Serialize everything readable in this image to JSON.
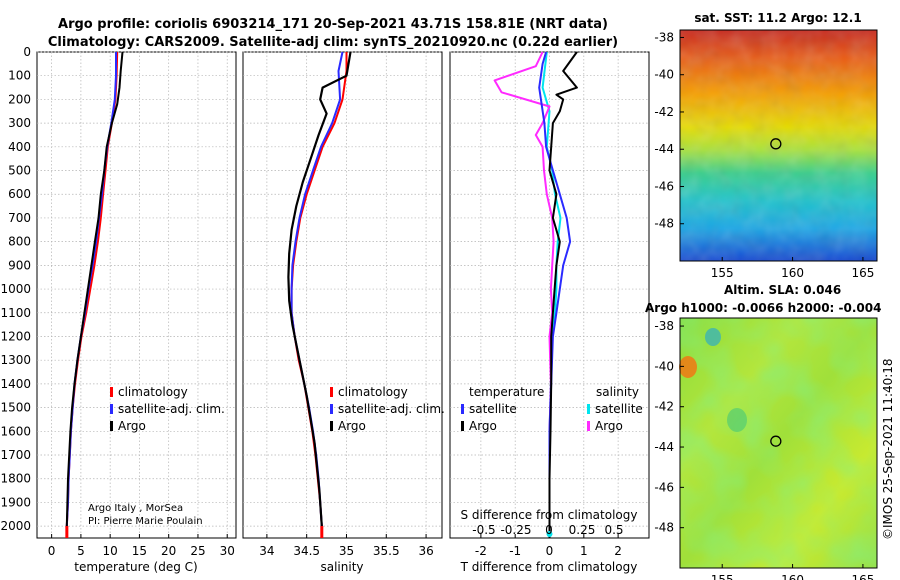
{
  "header": {
    "title_line1": "Argo profile: coriolis 6903214_171 20-Sep-2021 43.71S 158.81E (NRT data)",
    "title_line2": "Climatology: CARS2009. Satellite-adj clim: synTS_20210920.nc (0.22d earlier)"
  },
  "depth_axis": {
    "ticks": [
      0,
      100,
      200,
      300,
      400,
      500,
      600,
      700,
      800,
      900,
      1000,
      1100,
      1200,
      1300,
      1400,
      1500,
      1600,
      1700,
      1800,
      1900,
      2000
    ],
    "range": [
      0,
      2050
    ]
  },
  "panels": {
    "temperature": {
      "xlabel": "temperature (deg C)",
      "ticks": [
        0,
        5,
        10,
        15,
        20,
        25,
        30
      ],
      "tick_labels": [
        "0",
        "5",
        "10",
        "15",
        "20",
        "25",
        "30"
      ],
      "xlim": [
        -2.5,
        31.5
      ],
      "legend": [
        "climatology",
        "satellite-adj. clim.",
        "Argo"
      ],
      "credit_line1": "Argo Italy , MorSea",
      "credit_line2": "PI: Pierre Marie Poulain"
    },
    "salinity": {
      "xlabel": "salinity",
      "ticks": [
        34,
        34.5,
        35,
        35.5,
        36
      ],
      "tick_labels": [
        "34",
        "34.5",
        "35",
        "35.5",
        "36"
      ],
      "xlim": [
        33.7,
        36.2
      ],
      "legend": [
        "climatology",
        "satellite-adj. clim.",
        "Argo"
      ]
    },
    "difference": {
      "xlabel": "T difference from climatology",
      "ticks": [
        -2,
        -1,
        0,
        1,
        2
      ],
      "tick_labels": [
        "-2",
        "-1",
        "0",
        "1",
        "2"
      ],
      "xlim": [
        -2.9,
        2.9
      ],
      "s_label": "S difference from climatology",
      "s_tick_labels": [
        "-0.5",
        "-0.25",
        "0",
        "0.25",
        "0.5"
      ],
      "legend_temp_title": "temperature",
      "legend_sal_title": "salinity",
      "legend_temp": [
        "satellite",
        "Argo"
      ],
      "legend_sal": [
        "satellite",
        "Argo"
      ]
    }
  },
  "chart_data": {
    "type": "line",
    "y_axis": "depth (m)",
    "temperature": {
      "climatology": [
        [
          11.2,
          0
        ],
        [
          11.1,
          100
        ],
        [
          10.9,
          200
        ],
        [
          10.3,
          300
        ],
        [
          9.6,
          400
        ],
        [
          9.2,
          500
        ],
        [
          8.8,
          600
        ],
        [
          8.4,
          700
        ],
        [
          7.9,
          800
        ],
        [
          7.3,
          900
        ],
        [
          6.6,
          1000
        ],
        [
          5.9,
          1100
        ],
        [
          5.1,
          1200
        ],
        [
          4.5,
          1300
        ],
        [
          4.0,
          1400
        ],
        [
          3.6,
          1500
        ],
        [
          3.3,
          1600
        ],
        [
          3.1,
          1700
        ],
        [
          2.9,
          1800
        ],
        [
          2.8,
          1900
        ],
        [
          2.6,
          2000
        ],
        [
          2.6,
          2050
        ]
      ],
      "satellite_adj": [
        [
          11.0,
          0
        ],
        [
          11.0,
          100
        ],
        [
          10.8,
          200
        ],
        [
          10.2,
          300
        ],
        [
          9.5,
          400
        ],
        [
          9.0,
          500
        ],
        [
          8.6,
          600
        ],
        [
          8.1,
          700
        ],
        [
          7.6,
          800
        ],
        [
          7.0,
          900
        ],
        [
          6.3,
          1000
        ],
        [
          5.7,
          1100
        ],
        [
          5.0,
          1200
        ],
        [
          4.4,
          1300
        ],
        [
          3.9,
          1400
        ],
        [
          3.6,
          1500
        ],
        [
          3.3,
          1600
        ],
        [
          3.1,
          1700
        ],
        [
          2.9,
          1800
        ],
        [
          2.8,
          1900
        ],
        [
          2.6,
          2000
        ]
      ],
      "argo": [
        [
          12.1,
          0
        ],
        [
          11.8,
          80
        ],
        [
          11.6,
          150
        ],
        [
          11.2,
          220
        ],
        [
          10.3,
          300
        ],
        [
          9.4,
          400
        ],
        [
          9.0,
          500
        ],
        [
          8.4,
          600
        ],
        [
          8.0,
          700
        ],
        [
          7.4,
          800
        ],
        [
          6.8,
          900
        ],
        [
          6.2,
          1000
        ],
        [
          5.6,
          1100
        ],
        [
          5.0,
          1200
        ],
        [
          4.4,
          1300
        ],
        [
          3.9,
          1400
        ],
        [
          3.5,
          1500
        ],
        [
          3.2,
          1600
        ],
        [
          3.0,
          1700
        ],
        [
          2.8,
          1800
        ],
        [
          2.7,
          1900
        ],
        [
          2.6,
          2000
        ]
      ]
    },
    "salinity": {
      "climatology": [
        [
          35.0,
          0
        ],
        [
          35.0,
          80
        ],
        [
          34.95,
          200
        ],
        [
          34.85,
          300
        ],
        [
          34.7,
          400
        ],
        [
          34.6,
          500
        ],
        [
          34.5,
          600
        ],
        [
          34.42,
          700
        ],
        [
          34.37,
          800
        ],
        [
          34.33,
          900
        ],
        [
          34.31,
          1000
        ],
        [
          34.31,
          1100
        ],
        [
          34.35,
          1200
        ],
        [
          34.4,
          1300
        ],
        [
          34.47,
          1400
        ],
        [
          34.52,
          1500
        ],
        [
          34.57,
          1600
        ],
        [
          34.61,
          1700
        ],
        [
          34.64,
          1800
        ],
        [
          34.67,
          1900
        ],
        [
          34.69,
          2000
        ],
        [
          34.69,
          2050
        ]
      ],
      "satellite_adj": [
        [
          34.95,
          0
        ],
        [
          34.9,
          80
        ],
        [
          34.92,
          200
        ],
        [
          34.82,
          300
        ],
        [
          34.68,
          400
        ],
        [
          34.58,
          500
        ],
        [
          34.48,
          600
        ],
        [
          34.41,
          700
        ],
        [
          34.36,
          800
        ],
        [
          34.32,
          900
        ],
        [
          34.31,
          1000
        ],
        [
          34.31,
          1100
        ],
        [
          34.35,
          1200
        ],
        [
          34.41,
          1300
        ],
        [
          34.47,
          1400
        ],
        [
          34.53,
          1500
        ],
        [
          34.58,
          1600
        ],
        [
          34.62,
          1700
        ],
        [
          34.65,
          1800
        ],
        [
          34.67,
          1900
        ],
        [
          34.69,
          2000
        ]
      ],
      "argo": [
        [
          35.05,
          0
        ],
        [
          35.0,
          100
        ],
        [
          34.7,
          150
        ],
        [
          34.67,
          200
        ],
        [
          34.75,
          260
        ],
        [
          34.65,
          350
        ],
        [
          34.55,
          450
        ],
        [
          34.45,
          550
        ],
        [
          34.37,
          650
        ],
        [
          34.31,
          750
        ],
        [
          34.28,
          850
        ],
        [
          34.27,
          950
        ],
        [
          34.28,
          1050
        ],
        [
          34.32,
          1150
        ],
        [
          34.38,
          1250
        ],
        [
          34.44,
          1350
        ],
        [
          34.5,
          1450
        ],
        [
          34.55,
          1550
        ],
        [
          34.6,
          1650
        ],
        [
          34.63,
          1750
        ],
        [
          34.66,
          1850
        ],
        [
          34.68,
          1950
        ],
        [
          34.69,
          2000
        ]
      ]
    },
    "temp_diff": {
      "satellite": [
        [
          -0.1,
          0
        ],
        [
          -0.2,
          50
        ],
        [
          -0.3,
          150
        ],
        [
          -0.15,
          300
        ],
        [
          -0.1,
          400
        ],
        [
          0.1,
          500
        ],
        [
          0.3,
          600
        ],
        [
          0.5,
          700
        ],
        [
          0.6,
          800
        ],
        [
          0.4,
          900
        ],
        [
          0.3,
          1000
        ],
        [
          0.2,
          1100
        ],
        [
          0.1,
          1200
        ],
        [
          0.05,
          1400
        ],
        [
          0,
          1600
        ],
        [
          0,
          2050
        ]
      ],
      "argo": [
        [
          0.8,
          0
        ],
        [
          0.4,
          80
        ],
        [
          0.8,
          150
        ],
        [
          0.2,
          180
        ],
        [
          0.4,
          200
        ],
        [
          0.3,
          250
        ],
        [
          0.1,
          300
        ],
        [
          0.05,
          400
        ],
        [
          0.0,
          500
        ],
        [
          0.2,
          600
        ],
        [
          0.1,
          700
        ],
        [
          0.3,
          800
        ],
        [
          0.2,
          900
        ],
        [
          0.15,
          1000
        ],
        [
          0.1,
          1100
        ],
        [
          0.05,
          1200
        ],
        [
          0.05,
          1400
        ],
        [
          0.03,
          1600
        ],
        [
          0.0,
          1800
        ],
        [
          0,
          2050
        ]
      ]
    },
    "sal_diff": {
      "satellite": [
        [
          -0.02,
          0
        ],
        [
          -0.03,
          50
        ],
        [
          -0.05,
          150
        ],
        [
          0.0,
          250
        ],
        [
          -0.02,
          400
        ],
        [
          0.02,
          500
        ],
        [
          0.04,
          600
        ],
        [
          0.08,
          700
        ],
        [
          0.06,
          800
        ],
        [
          0.05,
          900
        ],
        [
          0.05,
          1000
        ],
        [
          0.04,
          1100
        ],
        [
          0.02,
          1200
        ],
        [
          0.01,
          1400
        ],
        [
          0,
          1600
        ],
        [
          0,
          2050
        ]
      ],
      "argo": [
        [
          -0.05,
          0
        ],
        [
          -0.1,
          60
        ],
        [
          -0.4,
          120
        ],
        [
          -0.35,
          170
        ],
        [
          0.0,
          230
        ],
        [
          -0.05,
          300
        ],
        [
          -0.1,
          350
        ],
        [
          -0.05,
          400
        ],
        [
          -0.04,
          500
        ],
        [
          -0.02,
          600
        ],
        [
          0.02,
          700
        ],
        [
          0.03,
          800
        ],
        [
          0.02,
          900
        ],
        [
          0.01,
          1000
        ],
        [
          0.02,
          1100
        ],
        [
          0.0,
          1200
        ],
        [
          0.01,
          1400
        ],
        [
          0.0,
          1600
        ],
        [
          0,
          2050
        ]
      ]
    },
    "colors": {
      "climatology": "#ff0000",
      "satellite_adj": "#2a2aff",
      "argo": "#000000",
      "sal_satellite": "#00e5ee",
      "sal_argo": "#ff2aff"
    }
  },
  "maps": {
    "sst": {
      "title": "sat. SST: 11.2 Argo: 12.1",
      "xticks": [
        "155",
        "160",
        "165"
      ],
      "yticks": [
        "-38",
        "-40",
        "-42",
        "-44",
        "-46",
        "-48"
      ]
    },
    "sla": {
      "title_line1": "Altim. SLA: 0.046",
      "title_line2": "Argo h1000: -0.0066 h2000: -0.004",
      "xticks": [
        "155",
        "160",
        "165"
      ],
      "yticks": [
        "-38",
        "-40",
        "-42",
        "-44",
        "-46",
        "-48"
      ]
    },
    "float_position": {
      "lon": 158.81,
      "lat": -43.71
    },
    "lon_range": [
      152,
      166
    ],
    "lat_range": [
      -37.6,
      -50
    ]
  },
  "footer": {
    "imos_stamp": "©IMOS 25-Sep-2021 11:40:18"
  }
}
